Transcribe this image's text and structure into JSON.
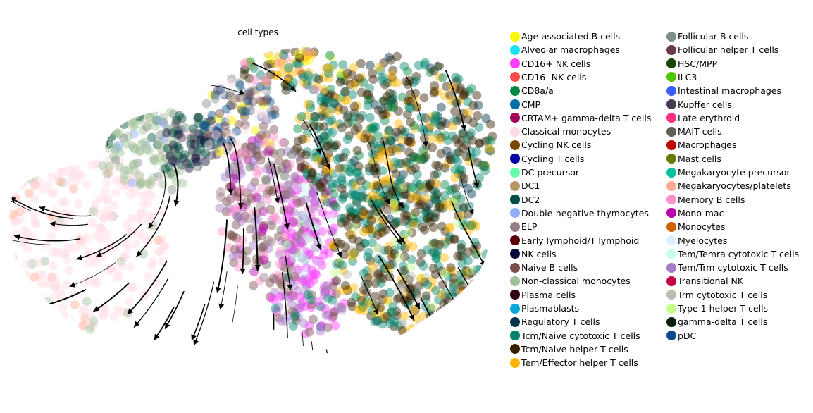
{
  "chart_data": {
    "type": "scatter",
    "title": "cell types",
    "xlabel": "",
    "ylabel": "",
    "grid": false,
    "legend_placement": "right",
    "overlay": "streamlines with arrows",
    "series": [
      {
        "name": "Age-associated B cells",
        "color": "#f8f800"
      },
      {
        "name": "Alveolar macrophages",
        "color": "#18e0f0"
      },
      {
        "name": "CD16+ NK cells",
        "color": "#ff40ff"
      },
      {
        "name": "CD16- NK cells",
        "color": "#ff4a46"
      },
      {
        "name": "CD8a/a",
        "color": "#008941"
      },
      {
        "name": "CMP",
        "color": "#006fa6"
      },
      {
        "name": "CRTAM+ gamma-delta T cells",
        "color": "#a30059"
      },
      {
        "name": "Classical monocytes",
        "color": "#ffdbe5"
      },
      {
        "name": "Cycling NK cells",
        "color": "#7a4900"
      },
      {
        "name": "Cycling T cells",
        "color": "#0000a6"
      },
      {
        "name": "DC precursor",
        "color": "#63ffac"
      },
      {
        "name": "DC1",
        "color": "#b79762"
      },
      {
        "name": "DC2",
        "color": "#004d43"
      },
      {
        "name": "Double-negative thymocytes",
        "color": "#8fb0ff"
      },
      {
        "name": "ELP",
        "color": "#997d87"
      },
      {
        "name": "Early lymphoid/T lymphoid",
        "color": "#5a0007"
      },
      {
        "name": "NK cells",
        "color": "#0a0a3a"
      },
      {
        "name": "Naive B cells",
        "color": "#7b4f4b"
      },
      {
        "name": "Non-classical monocytes",
        "color": "#a1c299"
      },
      {
        "name": "Plasma cells",
        "color": "#300018"
      },
      {
        "name": "Plasmablasts",
        "color": "#0aa6d8"
      },
      {
        "name": "Regulatory T cells",
        "color": "#013349"
      },
      {
        "name": "Tcm/Naive cytotoxic T cells",
        "color": "#00846f"
      },
      {
        "name": "Tcm/Naive helper T cells",
        "color": "#372101"
      },
      {
        "name": "Tem/Effector helper T cells",
        "color": "#ffb500"
      },
      {
        "name": "Follicular B cells",
        "color": "#7f8f8a"
      },
      {
        "name": "Follicular helper T cells",
        "color": "#6a3a4c"
      },
      {
        "name": "HSC/MPP",
        "color": "#1b4400"
      },
      {
        "name": "ILC3",
        "color": "#4fc601"
      },
      {
        "name": "Intestinal macrophages",
        "color": "#3b5dff"
      },
      {
        "name": "Kupffer cells",
        "color": "#4a3b53"
      },
      {
        "name": "Late erythroid",
        "color": "#ff2f80"
      },
      {
        "name": "MAIT cells",
        "color": "#61615a"
      },
      {
        "name": "Macrophages",
        "color": "#ba0900"
      },
      {
        "name": "Mast cells",
        "color": "#6b7900"
      },
      {
        "name": "Megakaryocyte precursor",
        "color": "#00c2a0"
      },
      {
        "name": "Megakaryocytes/platelets",
        "color": "#ffaa92"
      },
      {
        "name": "Memory B cells",
        "color": "#ff90c9"
      },
      {
        "name": "Mono-mac",
        "color": "#b903aa"
      },
      {
        "name": "Monocytes",
        "color": "#d16100"
      },
      {
        "name": "Myelocytes",
        "color": "#ddefff"
      },
      {
        "name": "Tem/Temra cytotoxic T cells",
        "color": "#c8fff0"
      },
      {
        "name": "Tem/Trm cytotoxic T cells",
        "color": "#a77bca"
      },
      {
        "name": "Transitional NK",
        "color": "#c2004a"
      },
      {
        "name": "Trm cytotoxic T cells",
        "color": "#bfbab0"
      },
      {
        "name": "Type 1 helper T cells",
        "color": "#c4ff8a"
      },
      {
        "name": "gamma-delta T cells",
        "color": "#0b1f0b"
      },
      {
        "name": "pDC",
        "color": "#0a4b8f"
      }
    ]
  }
}
